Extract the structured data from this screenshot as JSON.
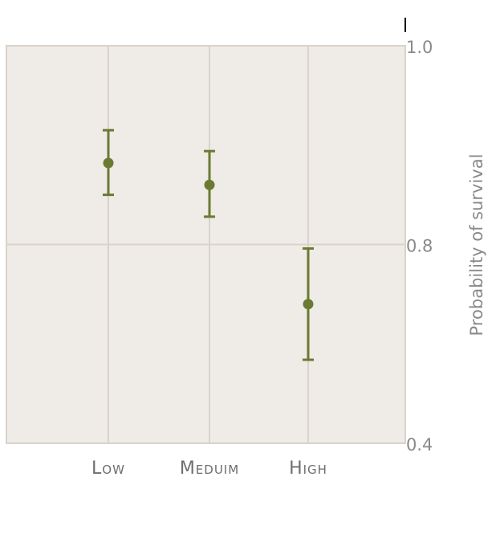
{
  "chart_data": {
    "type": "scatter",
    "title": "",
    "xlabel": "",
    "ylabel": "Probability of survival",
    "categories": [
      "Low",
      "Meduim",
      "High"
    ],
    "yticks": [
      1.0,
      0.8,
      0.4
    ],
    "ytick_labels": [
      "1.0",
      "0.8",
      "0.4"
    ],
    "ylim": [
      0.4,
      1.0
    ],
    "y_axis_position": "right",
    "grid": true,
    "points": [
      {
        "category": "Low",
        "value": 0.882,
        "lower": 0.85,
        "upper": 0.915
      },
      {
        "category": "Meduim",
        "value": 0.86,
        "lower": 0.828,
        "upper": 0.894
      },
      {
        "category": "High",
        "value": 0.68,
        "lower": 0.568,
        "upper": 0.792
      }
    ],
    "colors": {
      "marker": "#6b7a33",
      "background": "#efebe6",
      "grid": "#d9d3ca"
    }
  }
}
